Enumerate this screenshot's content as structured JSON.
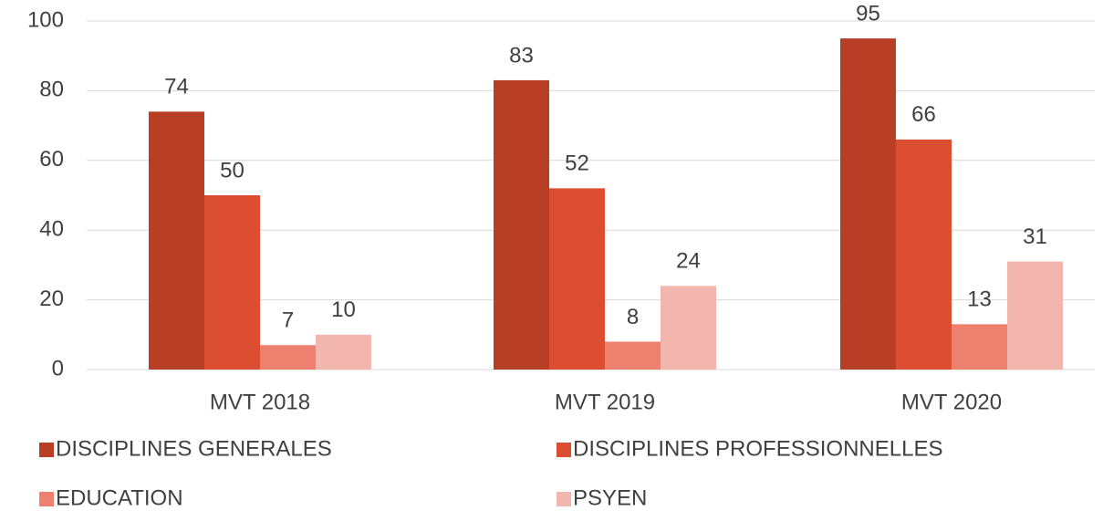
{
  "chart_data": {
    "type": "bar",
    "categories": [
      "MVT 2018",
      "MVT 2019",
      "MVT 2020"
    ],
    "series": [
      {
        "name": "DISCIPLINES GENERALES",
        "color": "#b83f26",
        "values": [
          74,
          83,
          95
        ]
      },
      {
        "name": "DISCIPLINES PROFESSIONNELLES",
        "color": "#dc4e31",
        "values": [
          50,
          52,
          66
        ]
      },
      {
        "name": "EDUCATION",
        "color": "#ee8070",
        "values": [
          7,
          8,
          13
        ]
      },
      {
        "name": "PSYEN",
        "color": "#f2b6ae",
        "values": [
          10,
          24,
          31
        ]
      }
    ],
    "ylim": [
      0,
      100
    ],
    "yticks": [
      0,
      20,
      40,
      60,
      80,
      100
    ],
    "grid": true,
    "legend": "bottom"
  }
}
